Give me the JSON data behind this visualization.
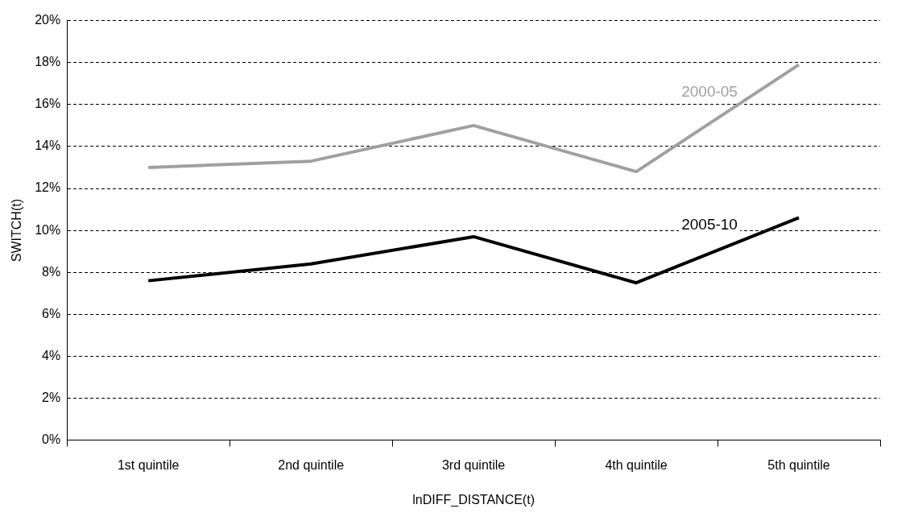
{
  "chart_data": {
    "type": "line",
    "xlabel": "lnDIFF_DISTANCE(t)",
    "ylabel": "SWITCH(t)",
    "categories": [
      "1st quintile",
      "2nd quintile",
      "3rd quintile",
      "4th quintile",
      "5th quintile"
    ],
    "series": [
      {
        "name": "2000-05",
        "color": "#a0a0a0",
        "values": [
          13.0,
          13.3,
          15.0,
          12.8,
          17.9
        ]
      },
      {
        "name": "2005-10",
        "color": "#000000",
        "values": [
          7.6,
          8.4,
          9.7,
          7.5,
          10.6
        ]
      }
    ],
    "ylim": [
      0,
      20
    ],
    "yticks": [
      {
        "value": 0,
        "label": "0%"
      },
      {
        "value": 2,
        "label": "2%"
      },
      {
        "value": 4,
        "label": "4%"
      },
      {
        "value": 6,
        "label": "6%"
      },
      {
        "value": 8,
        "label": "8%"
      },
      {
        "value": 10,
        "label": "10%"
      },
      {
        "value": 12,
        "label": "12%"
      },
      {
        "value": 14,
        "label": "14%"
      },
      {
        "value": 16,
        "label": "16%"
      },
      {
        "value": 18,
        "label": "18%"
      },
      {
        "value": 20,
        "label": "20%"
      }
    ],
    "grid": "y",
    "legend": false,
    "marker": "none",
    "line_style": "solid"
  }
}
